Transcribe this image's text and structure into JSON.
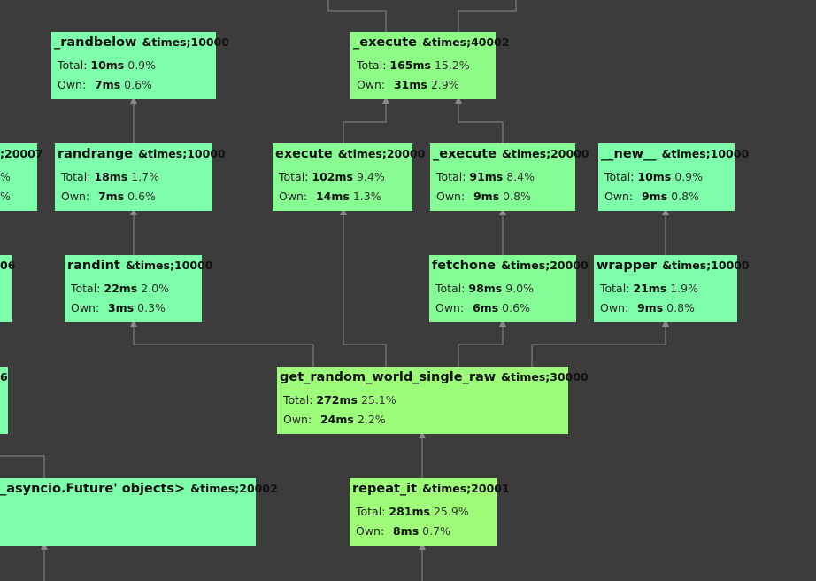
{
  "labels": {
    "total": "Total:",
    "own": "Own:"
  },
  "colors": {
    "background": "#3c3c3d",
    "edge": "#8a8a8a"
  },
  "nodes": {
    "randbelow": {
      "name": "_randbelow",
      "count": "&times;10000",
      "total_ms": "10ms",
      "total_pct": "0.9%",
      "own_ms": "7ms",
      "own_pct": "0.6%",
      "color": "#7efdaa"
    },
    "execute_top": {
      "name": "_execute",
      "count": "&times;40002",
      "total_ms": "165ms",
      "total_pct": "15.2%",
      "own_ms": "31ms",
      "own_pct": "2.9%",
      "color": "#8dfc86"
    },
    "left_partial": {
      "name": "",
      "count": ";20007",
      "total_ms": "",
      "total_pct": "%",
      "own_ms": "",
      "own_pct": "%",
      "color": "#7efdaa"
    },
    "randrange": {
      "name": "randrange",
      "count": "&times;10000",
      "total_ms": "18ms",
      "total_pct": "1.7%",
      "own_ms": "7ms",
      "own_pct": "0.6%",
      "color": "#7efdaa"
    },
    "execute_mid": {
      "name": "execute",
      "count": "&times;20000",
      "total_ms": "102ms",
      "total_pct": "9.4%",
      "own_ms": "14ms",
      "own_pct": "1.3%",
      "color": "#88fc92"
    },
    "execute_mid2": {
      "name": "_execute",
      "count": "&times;20000",
      "total_ms": "91ms",
      "total_pct": "8.4%",
      "own_ms": "9ms",
      "own_pct": "0.8%",
      "color": "#86fc96"
    },
    "new": {
      "name": "__new__",
      "count": "&times;10000",
      "total_ms": "10ms",
      "total_pct": "0.9%",
      "own_ms": "9ms",
      "own_pct": "0.8%",
      "color": "#7efdaa"
    },
    "left_partial2": {
      "name": "",
      "count": "06",
      "total_ms": "",
      "total_pct": "",
      "own_ms": "",
      "own_pct": "",
      "color": "#7efdaa"
    },
    "randint": {
      "name": "randint",
      "count": "&times;10000",
      "total_ms": "22ms",
      "total_pct": "2.0%",
      "own_ms": "3ms",
      "own_pct": "0.3%",
      "color": "#7efdaa"
    },
    "fetchone": {
      "name": "fetchone",
      "count": "&times;20000",
      "total_ms": "98ms",
      "total_pct": "9.0%",
      "own_ms": "6ms",
      "own_pct": "0.6%",
      "color": "#86fc96"
    },
    "wrapper": {
      "name": "wrapper",
      "count": "&times;10000",
      "total_ms": "21ms",
      "total_pct": "1.9%",
      "own_ms": "9ms",
      "own_pct": "0.8%",
      "color": "#7efdaa"
    },
    "left_partial3": {
      "name": "",
      "count": "6",
      "total_ms": "",
      "total_pct": "",
      "own_ms": "",
      "own_pct": "",
      "color": "#7efdaa"
    },
    "get_random": {
      "name": "get_random_world_single_raw",
      "count": "&times;30000",
      "total_ms": "272ms",
      "total_pct": "25.1%",
      "own_ms": "24ms",
      "own_pct": "2.2%",
      "color": "#9dfc7a"
    },
    "asyncio": {
      "name": "_asyncio.Future' objects>",
      "count": "&times;20002",
      "total_ms": "",
      "total_pct": "",
      "own_ms": "",
      "own_pct": "",
      "color": "#7efdaa"
    },
    "repeat_it": {
      "name": "repeat_it",
      "count": "&times;20001",
      "total_ms": "281ms",
      "total_pct": "25.9%",
      "own_ms": "8ms",
      "own_pct": "0.7%",
      "color": "#9ffc79"
    }
  }
}
